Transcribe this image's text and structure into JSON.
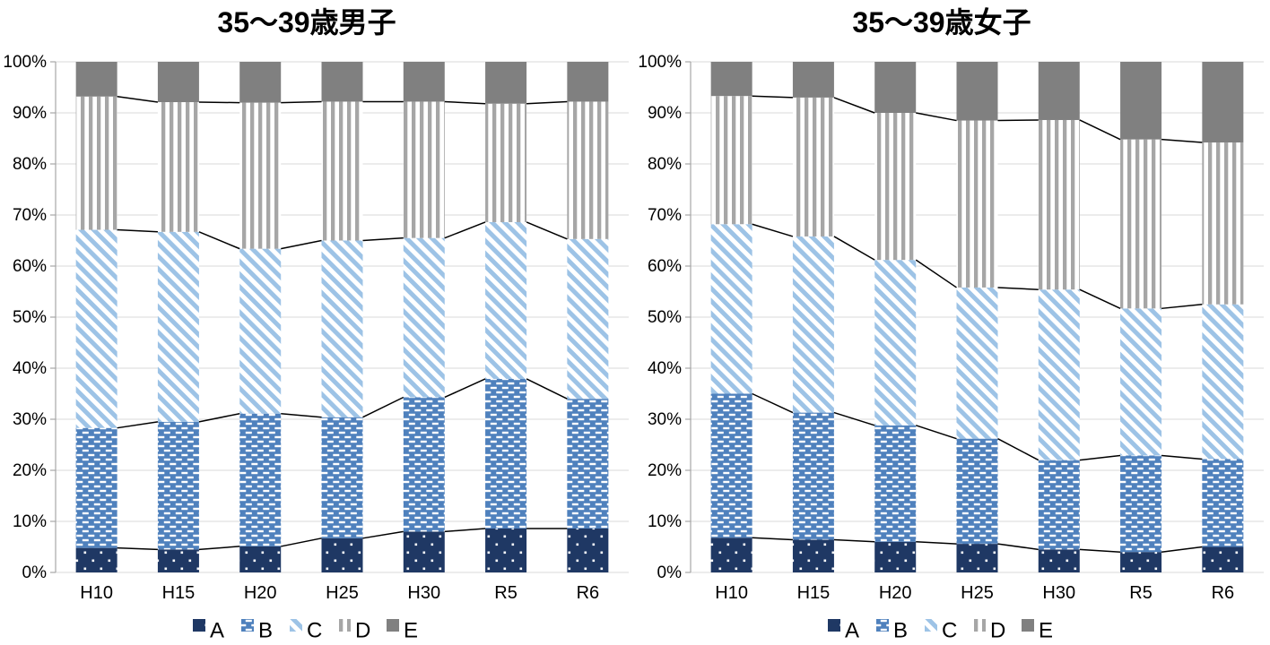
{
  "colors": {
    "series_a_navy": "#1F3864",
    "series_b_blue": "#4F81BD",
    "series_c_lightblue": "#9DC3E6",
    "series_d_gray_stripe": "#A6A6A6",
    "series_e_gray_solid": "#808080",
    "gridline": "#D9D9D9",
    "axis_line": "#A6A6A6",
    "connector_line": "#000000",
    "text": "#000000"
  },
  "legend": {
    "labels": [
      "A",
      "B",
      "C",
      "D",
      "E"
    ]
  },
  "chart_data": [
    {
      "type": "bar",
      "stacked": true,
      "percent_stacked": true,
      "title": "35〜39歳男子",
      "categories": [
        "H10",
        "H15",
        "H20",
        "H25",
        "H30",
        "R5",
        "R6"
      ],
      "series": [
        {
          "name": "A",
          "pattern": "navy-dots",
          "values": [
            4.8,
            4.5,
            5.1,
            6.7,
            8.0,
            8.6,
            8.6
          ]
        },
        {
          "name": "B",
          "pattern": "blue-dashes",
          "values": [
            23.5,
            25.0,
            26.0,
            23.7,
            26.3,
            29.3,
            25.4
          ]
        },
        {
          "name": "C",
          "pattern": "lightblue-diagonal",
          "values": [
            38.8,
            37.2,
            32.3,
            34.6,
            31.2,
            30.7,
            31.3
          ]
        },
        {
          "name": "D",
          "pattern": "gray-vertical",
          "values": [
            26.1,
            25.4,
            28.6,
            27.2,
            26.7,
            23.2,
            26.9
          ]
        },
        {
          "name": "E",
          "pattern": "gray-solid",
          "values": [
            6.8,
            7.9,
            8.0,
            7.8,
            7.8,
            8.2,
            7.8
          ]
        }
      ],
      "y_ticks": [
        "0%",
        "10%",
        "20%",
        "30%",
        "40%",
        "50%",
        "60%",
        "70%",
        "80%",
        "90%",
        "100%"
      ],
      "ylim": [
        0,
        100
      ],
      "grid": true,
      "legend_position": "bottom",
      "connector_lines": true
    },
    {
      "type": "bar",
      "stacked": true,
      "percent_stacked": true,
      "title": "35〜39歳女子",
      "categories": [
        "H10",
        "H15",
        "H20",
        "H25",
        "H30",
        "R5",
        "R6"
      ],
      "series": [
        {
          "name": "A",
          "pattern": "navy-dots",
          "values": [
            6.8,
            6.4,
            6.0,
            5.6,
            4.5,
            4.0,
            5.0
          ]
        },
        {
          "name": "B",
          "pattern": "blue-dashes",
          "values": [
            28.2,
            24.9,
            22.8,
            20.6,
            17.5,
            18.9,
            17.2
          ]
        },
        {
          "name": "C",
          "pattern": "lightblue-diagonal",
          "values": [
            33.2,
            34.5,
            32.4,
            29.6,
            33.4,
            28.8,
            30.3
          ]
        },
        {
          "name": "D",
          "pattern": "gray-vertical",
          "values": [
            25.1,
            27.2,
            28.8,
            32.7,
            33.2,
            33.1,
            31.7
          ]
        },
        {
          "name": "E",
          "pattern": "gray-solid",
          "values": [
            6.7,
            7.0,
            10.0,
            11.5,
            11.4,
            15.2,
            15.8
          ]
        }
      ],
      "y_ticks": [
        "0%",
        "10%",
        "20%",
        "30%",
        "40%",
        "50%",
        "60%",
        "70%",
        "80%",
        "90%",
        "100%"
      ],
      "ylim": [
        0,
        100
      ],
      "grid": true,
      "legend_position": "bottom",
      "connector_lines": true
    }
  ]
}
